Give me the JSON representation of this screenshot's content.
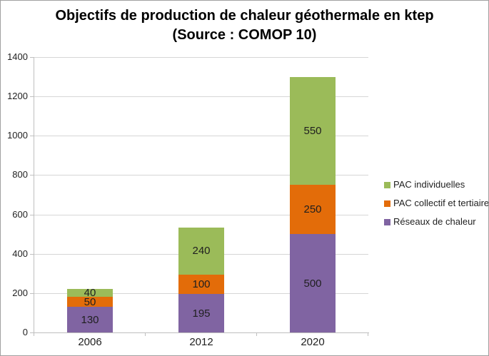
{
  "title": {
    "line1": "Objectifs de production de chaleur géothermale en ktep",
    "line2": "(Source : COMOP 10)"
  },
  "chart_data": {
    "type": "bar",
    "stacked": true,
    "title": "Objectifs de production de chaleur géothermale en ktep (Source : COMOP 10)",
    "categories": [
      "2006",
      "2012",
      "2020"
    ],
    "series": [
      {
        "name": "Réseaux de chaleur",
        "color": "#8064A2",
        "values": [
          130,
          195,
          500
        ]
      },
      {
        "name": "PAC collectif et tertiaire",
        "color": "#E36C09",
        "values": [
          50,
          100,
          250
        ]
      },
      {
        "name": "PAC individuelles",
        "color": "#9BBB59",
        "values": [
          40,
          240,
          550
        ]
      }
    ],
    "totals": [
      220,
      535,
      1300
    ],
    "xlabel": "",
    "ylabel": "",
    "ylim": [
      0,
      1400
    ],
    "yticks": [
      0,
      200,
      400,
      600,
      800,
      1000,
      1200,
      1400
    ],
    "grid": true,
    "data_labels": true,
    "legend_position": "right",
    "legend_order": [
      "PAC individuelles",
      "PAC collectif et tertiaire",
      "Réseaux de chaleur"
    ]
  },
  "colors": {
    "gridline": "#D6D6D6",
    "axis": "#BFBFBF",
    "outer_border": "#A0A0A0",
    "label_text": "#1F1F1F",
    "title_text": "#000000"
  }
}
